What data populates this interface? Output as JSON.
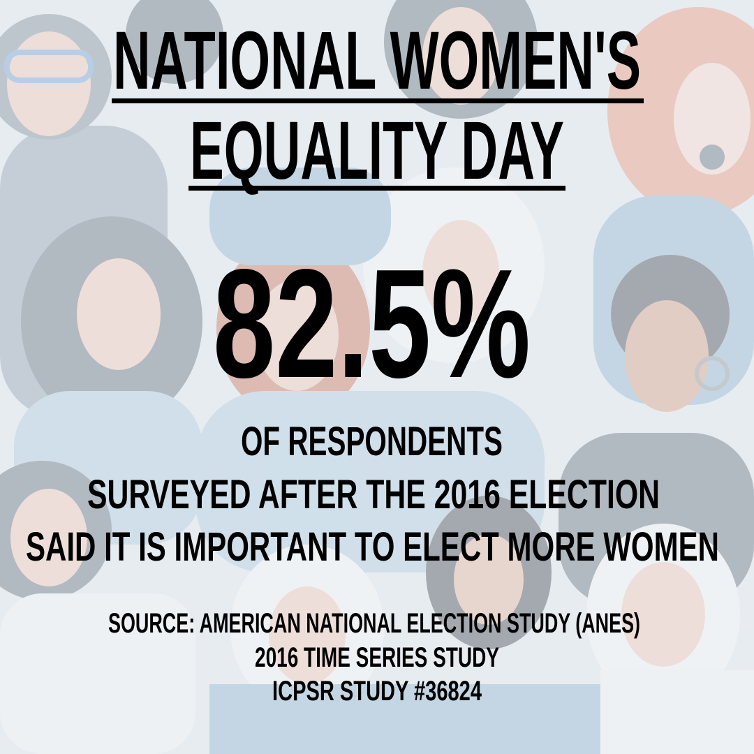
{
  "header": {
    "title_lines": [
      "NATIONAL WOMEN'S",
      "EQUALITY DAY"
    ]
  },
  "statistic": {
    "value": "82.5%",
    "description_lines": [
      "OF RESPONDENTS",
      "SURVEYED AFTER THE 2016 ELECTION",
      "SAID IT IS IMPORTANT TO ELECT MORE WOMEN"
    ]
  },
  "source": {
    "lines": [
      "SOURCE: AMERICAN NATIONAL ELECTION STUDY (ANES)",
      "2016 TIME SERIES STUDY",
      "ICPSR STUDY #36824"
    ]
  }
}
